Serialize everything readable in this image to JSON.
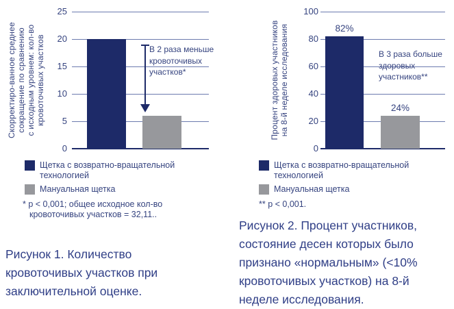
{
  "colors": {
    "bar_primary": "#1d2a68",
    "bar_secondary": "#97989c",
    "axis_text": "#35437f",
    "caption_text": "#2f3e86",
    "gridline": "#6b7aae"
  },
  "legend": {
    "items": [
      {
        "label": "Щетка с возвратно-вращательной технологией",
        "color": "#1d2a68"
      },
      {
        "label": "Мануальная щетка",
        "color": "#97989c"
      }
    ]
  },
  "figures": [
    {
      "footnote_lines": [
        "* p < 0,001; общее исходное кол-во",
        "кровоточивых участков = 32,11.."
      ],
      "caption": "Рисунок 1. Количество кровоточивых участков при заключительной оценке."
    },
    {
      "footnote_lines": [
        "** p < 0,001."
      ],
      "caption": "Рисунок 2. Процент участников, состояние десен которых было признано «нормальным» (<10% кровоточивых участков) на 8-й неделе исследования."
    }
  ],
  "chart_data": [
    {
      "type": "bar",
      "title": "Рисунок 1. Количество кровоточивых участков при заключительной оценке.",
      "ylabel": "Скорректиро-ванное среднее сокращение по сравнению с исходным уровнем: кол-во кровоточивых участков",
      "ylabel_lines": [
        "Скорректиро-ванное среднее",
        "сокращение по сравнению",
        "с исходным уровнем: кол-во",
        "кровоточивых участков"
      ],
      "xlabel": "",
      "categories": [
        "Щетка с возвратно-вращательной технологией",
        "Мануальная щетка"
      ],
      "values": [
        20,
        6
      ],
      "bar_labels": [
        "",
        ""
      ],
      "ylim": [
        0,
        25
      ],
      "yticks": [
        0,
        5,
        10,
        15,
        20,
        25
      ],
      "grid": true,
      "legend_position": "bottom",
      "annotation": {
        "lines": [
          "В 2 раза меньше",
          "кровоточивых",
          "участков*"
        ],
        "has_arrow": true
      }
    },
    {
      "type": "bar",
      "title": "Рисунок 2. Процент участников, состояние десен которых было признано «нормальным» (<10% кровоточивых участков) на 8-й неделе исследования.",
      "ylabel": "Процент здоровых участников на 8-й неделе исследования",
      "ylabel_lines": [
        "Процент здоровых участников",
        "на 8-й неделе исследования"
      ],
      "xlabel": "",
      "categories": [
        "Щетка с возвратно-вращательной технологией",
        "Мануальная щетка"
      ],
      "values": [
        82,
        24
      ],
      "bar_labels": [
        "82%",
        "24%"
      ],
      "ylim": [
        0,
        100
      ],
      "yticks": [
        0,
        20,
        40,
        60,
        80,
        100
      ],
      "grid": true,
      "legend_position": "bottom",
      "annotation": {
        "lines": [
          "В 3 раза больше",
          "здоровых",
          "участников**"
        ],
        "has_arrow": false
      }
    }
  ]
}
